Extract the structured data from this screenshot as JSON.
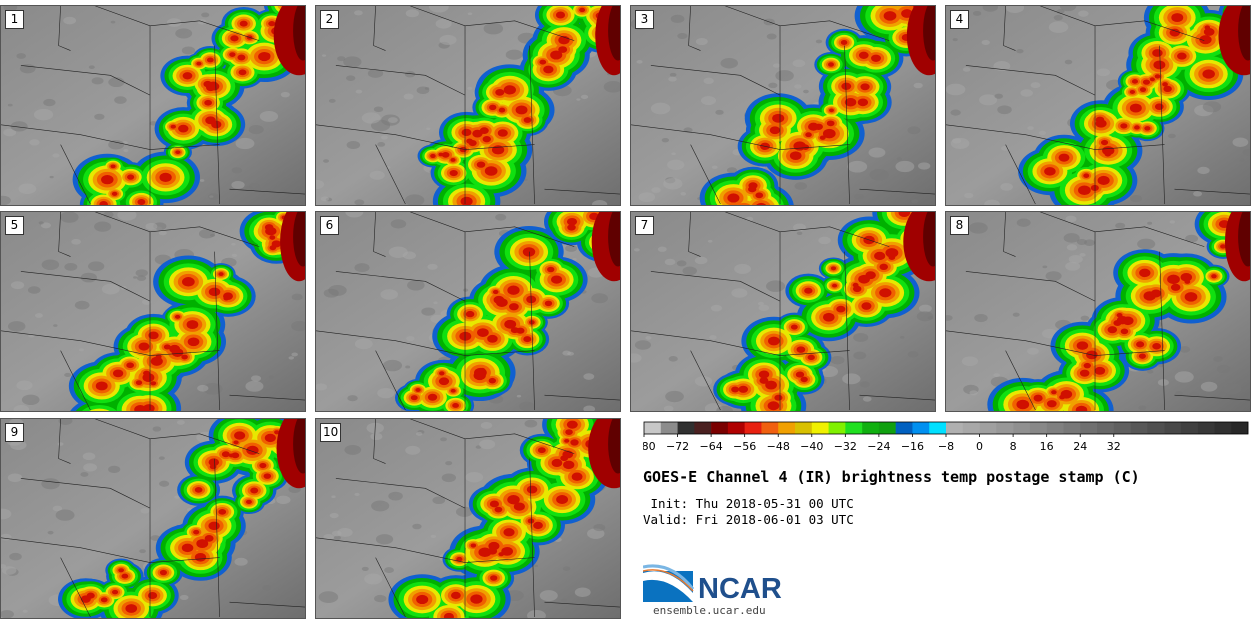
{
  "panels": [
    {
      "label": "1"
    },
    {
      "label": "2"
    },
    {
      "label": "3"
    },
    {
      "label": "4"
    },
    {
      "label": "5"
    },
    {
      "label": "6"
    },
    {
      "label": "7"
    },
    {
      "label": "8"
    },
    {
      "label": "9"
    },
    {
      "label": "10"
    }
  ],
  "colorbar": {
    "ticks": [
      "−80",
      "−72",
      "−64",
      "−56",
      "−48",
      "−40",
      "−32",
      "−24",
      "−16",
      "−8",
      "0",
      "8",
      "16",
      "24",
      "32"
    ],
    "colors": [
      "#c8c8c8",
      "#8c8c8c",
      "#303030",
      "#4a2020",
      "#7a0000",
      "#b00000",
      "#e82010",
      "#f06010",
      "#f0a000",
      "#d8c000",
      "#f0f000",
      "#80f000",
      "#20e020",
      "#10b010",
      "#10a010",
      "#0060c0",
      "#0090f0",
      "#00e0ff",
      "#b0b0b0",
      "#a8a8a8",
      "#a0a0a0",
      "#989898",
      "#909090",
      "#888888",
      "#808080",
      "#787878",
      "#707070",
      "#686868",
      "#606060",
      "#585858",
      "#505050",
      "#484848",
      "#404040",
      "#383838",
      "#303030",
      "#282828"
    ]
  },
  "title": "GOES-E Channel 4 (IR) brightness temp postage stamp (C)",
  "init": " Init: Thu 2018-05-31 00 UTC",
  "valid": "Valid: Fri 2018-06-01 03 UTC",
  "logo": {
    "text": "NCAR",
    "url_text": "ensemble.ucar.edu",
    "color": "#1f4f8c"
  }
}
